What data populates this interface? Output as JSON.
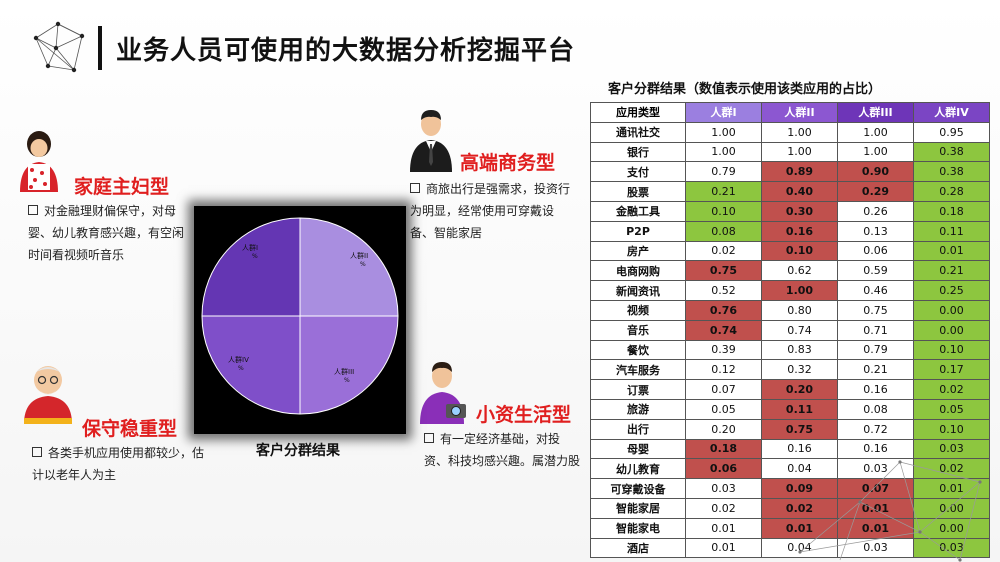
{
  "page": {
    "title": "业务人员可使用的大数据分析挖掘平台"
  },
  "personas": [
    {
      "id": "home",
      "name": "家庭主妇型",
      "desc": "对金融理财偏保守，对母婴、幼儿教育感兴趣，有空闲时间看视频听音乐"
    },
    {
      "id": "business",
      "name": "高端商务型",
      "desc": "商旅出行是强需求，投资行为明显，经常使用可穿戴设备、智能家居"
    },
    {
      "id": "conservative",
      "name": "保守稳重型",
      "desc": "各类手机应用使用都较少，估计以老年人为主"
    },
    {
      "id": "petty",
      "name": "小资生活型",
      "desc": "有一定经济基础，对投资、科技均感兴趣。属潜力股"
    }
  ],
  "pie": {
    "caption": "客户分群结果",
    "labels": [
      "人群I",
      "人群II",
      "人群III",
      "人群IV"
    ],
    "pct_symbol": "%",
    "colors": [
      "#a98ee0",
      "#9a6fd8",
      "#7f4fc9",
      "#6436b3"
    ]
  },
  "chart_data": {
    "type": "pie",
    "categories": [
      "人群I",
      "人群II",
      "人群III",
      "人群IV"
    ],
    "values": [
      25,
      25,
      25,
      25
    ]
  },
  "table": {
    "title": "客户分群结果（数值表示使用该类应用的占比）",
    "corner": "应用类型",
    "headers": [
      "人群I",
      "人群II",
      "人群III",
      "人群IV"
    ],
    "header_colors": [
      "#9b7fe0",
      "#8c57d1",
      "#6e35b8",
      "#7b45c4"
    ],
    "rows": [
      {
        "label": "通讯社交",
        "values": [
          "1.00",
          "1.00",
          "1.00",
          "0.95"
        ],
        "colors": [
          "",
          "",
          "",
          ""
        ]
      },
      {
        "label": "银行",
        "values": [
          "1.00",
          "1.00",
          "1.00",
          "0.38"
        ],
        "colors": [
          "",
          "",
          "",
          "g"
        ]
      },
      {
        "label": "支付",
        "values": [
          "0.79",
          "0.89",
          "0.90",
          "0.38"
        ],
        "colors": [
          "",
          "r",
          "r",
          "g"
        ]
      },
      {
        "label": "股票",
        "values": [
          "0.21",
          "0.40",
          "0.29",
          "0.28"
        ],
        "colors": [
          "g",
          "r",
          "r",
          "g"
        ]
      },
      {
        "label": "金融工具",
        "values": [
          "0.10",
          "0.30",
          "0.26",
          "0.18"
        ],
        "colors": [
          "g",
          "r",
          "",
          "g"
        ]
      },
      {
        "label": "P2P",
        "values": [
          "0.08",
          "0.16",
          "0.13",
          "0.11"
        ],
        "colors": [
          "g",
          "r",
          "",
          "g"
        ]
      },
      {
        "label": "房产",
        "values": [
          "0.02",
          "0.10",
          "0.06",
          "0.01"
        ],
        "colors": [
          "",
          "r",
          "",
          "g"
        ]
      },
      {
        "label": "电商网购",
        "values": [
          "0.75",
          "0.62",
          "0.59",
          "0.21"
        ],
        "colors": [
          "r",
          "",
          "",
          "g"
        ]
      },
      {
        "label": "新闻资讯",
        "values": [
          "0.52",
          "1.00",
          "0.46",
          "0.25"
        ],
        "colors": [
          "",
          "r",
          "",
          "g"
        ]
      },
      {
        "label": "视频",
        "values": [
          "0.76",
          "0.80",
          "0.75",
          "0.00"
        ],
        "colors": [
          "r",
          "",
          "",
          "g"
        ]
      },
      {
        "label": "音乐",
        "values": [
          "0.74",
          "0.74",
          "0.71",
          "0.00"
        ],
        "colors": [
          "r",
          "",
          "",
          "g"
        ]
      },
      {
        "label": "餐饮",
        "values": [
          "0.39",
          "0.83",
          "0.79",
          "0.10"
        ],
        "colors": [
          "",
          "",
          "",
          "g"
        ]
      },
      {
        "label": "汽车服务",
        "values": [
          "0.12",
          "0.32",
          "0.21",
          "0.17"
        ],
        "colors": [
          "",
          "",
          "",
          "g"
        ]
      },
      {
        "label": "订票",
        "values": [
          "0.07",
          "0.20",
          "0.16",
          "0.02"
        ],
        "colors": [
          "",
          "r",
          "",
          "g"
        ]
      },
      {
        "label": "旅游",
        "values": [
          "0.05",
          "0.11",
          "0.08",
          "0.05"
        ],
        "colors": [
          "",
          "r",
          "",
          "g"
        ]
      },
      {
        "label": "出行",
        "values": [
          "0.20",
          "0.75",
          "0.72",
          "0.10"
        ],
        "colors": [
          "",
          "r",
          "",
          "g"
        ]
      },
      {
        "label": "母婴",
        "values": [
          "0.18",
          "0.16",
          "0.16",
          "0.03"
        ],
        "colors": [
          "r",
          "",
          "",
          "g"
        ]
      },
      {
        "label": "幼儿教育",
        "values": [
          "0.06",
          "0.04",
          "0.03",
          "0.02"
        ],
        "colors": [
          "r",
          "",
          "",
          "g"
        ]
      },
      {
        "label": "可穿戴设备",
        "values": [
          "0.03",
          "0.09",
          "0.07",
          "0.01"
        ],
        "colors": [
          "",
          "r",
          "r",
          "g"
        ]
      },
      {
        "label": "智能家居",
        "values": [
          "0.02",
          "0.02",
          "0.01",
          "0.00"
        ],
        "colors": [
          "",
          "r",
          "r",
          "g"
        ]
      },
      {
        "label": "智能家电",
        "values": [
          "0.01",
          "0.01",
          "0.01",
          "0.00"
        ],
        "colors": [
          "",
          "r",
          "r",
          "g"
        ]
      },
      {
        "label": "酒店",
        "values": [
          "0.01",
          "0.04",
          "0.03",
          "0.03"
        ],
        "colors": [
          "",
          "",
          "",
          "g"
        ]
      }
    ]
  }
}
